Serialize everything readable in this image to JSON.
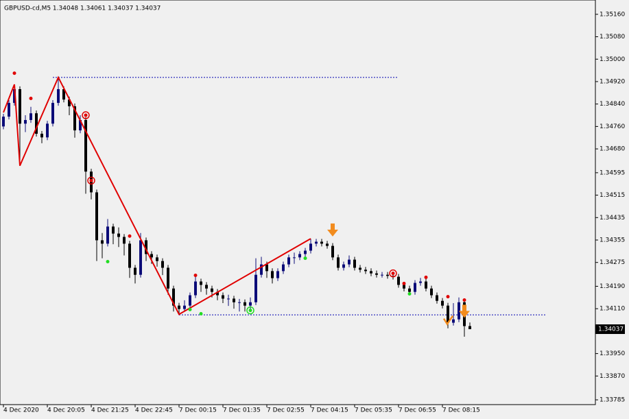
{
  "chart_data": {
    "type": "candlestick",
    "title": "GBPUSD-cd,M5  1.34048 1.34061 1.34037 1.34037",
    "categories": [
      "4 Dec 2020",
      null,
      null,
      null,
      null,
      null,
      null,
      null,
      "4 Dec 20:05",
      null,
      null,
      null,
      null,
      null,
      null,
      null,
      "4 Dec 21:25",
      null,
      null,
      null,
      null,
      null,
      null,
      null,
      "4 Dec 22:45",
      null,
      null,
      null,
      null,
      null,
      null,
      null,
      "7 Dec 00:15",
      null,
      null,
      null,
      null,
      null,
      null,
      null,
      "7 Dec 01:35",
      null,
      null,
      null,
      null,
      null,
      null,
      null,
      "7 Dec 02:55",
      null,
      null,
      null,
      null,
      null,
      null,
      null,
      "7 Dec 04:15",
      null,
      null,
      null,
      null,
      null,
      null,
      null,
      "7 Dec 05:35",
      null,
      null,
      null,
      null,
      null,
      null,
      null,
      "7 Dec 06:55",
      null,
      null,
      null,
      null,
      null,
      null,
      null,
      "7 Dec 08:15",
      null,
      null,
      null,
      null,
      null
    ],
    "open": [
      1.3476,
      1.34795,
      1.34844,
      1.34893,
      1.3477,
      1.34783,
      1.34807,
      1.34734,
      1.34721,
      1.3477,
      1.34844,
      1.34893,
      1.34856,
      1.34832,
      1.34746,
      1.34783,
      1.34599,
      1.34525,
      1.34354,
      1.34342,
      1.34403,
      1.34378,
      1.34366,
      1.34342,
      1.34256,
      1.34231,
      1.34354,
      1.34305,
      1.34293,
      1.3428,
      1.34256,
      1.34182,
      1.34121,
      1.34109,
      1.34121,
      1.34158,
      1.34207,
      1.34195,
      1.34182,
      1.3417,
      1.34158,
      1.34146,
      1.34146,
      1.34133,
      1.34133,
      1.34121,
      1.34133,
      1.34231,
      1.34268,
      1.34244,
      1.34219,
      1.34244,
      1.34268,
      1.34293,
      1.34293,
      1.34305,
      1.34317,
      1.34342,
      1.34349,
      1.34342,
      1.34334,
      1.34293,
      1.34256,
      1.34268,
      1.34285,
      1.34256,
      1.34249,
      1.34244,
      1.34236,
      1.34231,
      1.34231,
      1.34227,
      1.34224,
      1.34195,
      1.34182,
      1.3417,
      1.34202,
      1.34207,
      1.34182,
      1.34158,
      1.34138,
      1.34121,
      1.3406,
      1.34072,
      1.34133,
      1.34048
    ],
    "high": [
      1.34805,
      1.34854,
      1.3491,
      1.34903,
      1.348,
      1.3483,
      1.34817,
      1.34744,
      1.3478,
      1.34854,
      1.34935,
      1.34903,
      1.34866,
      1.34842,
      1.348,
      1.34793,
      1.34609,
      1.34535,
      1.3438,
      1.3443,
      1.34413,
      1.344,
      1.34376,
      1.34352,
      1.34266,
      1.3438,
      1.34364,
      1.34315,
      1.34303,
      1.3429,
      1.34266,
      1.34192,
      1.34131,
      1.3414,
      1.34168,
      1.3423,
      1.34217,
      1.34205,
      1.34192,
      1.3418,
      1.34168,
      1.3416,
      1.34156,
      1.34145,
      1.34143,
      1.3415,
      1.3429,
      1.34295,
      1.34278,
      1.34254,
      1.34254,
      1.34278,
      1.34303,
      1.3431,
      1.34315,
      1.34327,
      1.3436,
      1.34359,
      1.34359,
      1.34352,
      1.34344,
      1.34303,
      1.34278,
      1.343,
      1.34295,
      1.34266,
      1.34259,
      1.34254,
      1.34246,
      1.34241,
      1.34241,
      1.3424,
      1.34234,
      1.34205,
      1.34192,
      1.34212,
      1.3422,
      1.34217,
      1.34192,
      1.34168,
      1.34148,
      1.34131,
      1.3413,
      1.3415,
      1.34143,
      1.34061
    ],
    "low": [
      1.3475,
      1.34785,
      1.34834,
      1.3462,
      1.3474,
      1.34773,
      1.34724,
      1.347,
      1.34711,
      1.3476,
      1.34834,
      1.34846,
      1.348,
      1.3472,
      1.34736,
      1.3452,
      1.345,
      1.3428,
      1.3429,
      1.34332,
      1.3434,
      1.3433,
      1.343,
      1.3422,
      1.342,
      1.34221,
      1.3428,
      1.3427,
      1.3426,
      1.3423,
      1.3416,
      1.341,
      1.3409,
      1.34099,
      1.34111,
      1.34148,
      1.3417,
      1.3416,
      1.3415,
      1.3414,
      1.3413,
      1.3412,
      1.3411,
      1.341,
      1.341,
      1.341,
      1.34123,
      1.34221,
      1.3422,
      1.342,
      1.34209,
      1.34234,
      1.34258,
      1.3427,
      1.34283,
      1.34295,
      1.34307,
      1.34332,
      1.34332,
      1.34324,
      1.34283,
      1.34246,
      1.34246,
      1.34258,
      1.34246,
      1.34239,
      1.34234,
      1.34226,
      1.34221,
      1.34221,
      1.34217,
      1.34214,
      1.34185,
      1.34172,
      1.3416,
      1.3416,
      1.34192,
      1.34172,
      1.34148,
      1.34128,
      1.34111,
      1.3404,
      1.3405,
      1.34062,
      1.3401,
      1.34037
    ],
    "close": [
      1.34795,
      1.34844,
      1.34893,
      1.3477,
      1.34783,
      1.34807,
      1.34734,
      1.34721,
      1.3477,
      1.34844,
      1.34893,
      1.34856,
      1.34832,
      1.34746,
      1.34783,
      1.34599,
      1.34525,
      1.34354,
      1.34342,
      1.34403,
      1.34378,
      1.34366,
      1.34342,
      1.34256,
      1.34231,
      1.34354,
      1.34305,
      1.34293,
      1.3428,
      1.34256,
      1.34182,
      1.34121,
      1.34109,
      1.34121,
      1.34158,
      1.34207,
      1.34195,
      1.34182,
      1.3417,
      1.34158,
      1.34146,
      1.34146,
      1.34133,
      1.34133,
      1.34121,
      1.34133,
      1.34231,
      1.34268,
      1.34244,
      1.34219,
      1.34244,
      1.34268,
      1.34293,
      1.34293,
      1.34305,
      1.34317,
      1.34342,
      1.34349,
      1.34342,
      1.34334,
      1.34293,
      1.34256,
      1.34268,
      1.34285,
      1.34256,
      1.34249,
      1.34244,
      1.34236,
      1.34231,
      1.34231,
      1.34227,
      1.34224,
      1.34195,
      1.34182,
      1.3417,
      1.34202,
      1.34207,
      1.34182,
      1.34158,
      1.34138,
      1.34121,
      1.3406,
      1.34072,
      1.34133,
      1.34048,
      1.34037
    ],
    "up_color": "#0b0b78",
    "down_color": "#000000",
    "ylim": [
      1.33768,
      1.35211
    ],
    "yticks": [
      {
        "value": 1.3516,
        "label": "1.35160"
      },
      {
        "value": 1.3508,
        "label": "1.35080"
      },
      {
        "value": 1.35,
        "label": "1.35000"
      },
      {
        "value": 1.3492,
        "label": "1.34920"
      },
      {
        "value": 1.3484,
        "label": "1.34840"
      },
      {
        "value": 1.3476,
        "label": "1.34760"
      },
      {
        "value": 1.3468,
        "label": "1.34680"
      },
      {
        "value": 1.34595,
        "label": "1.34595"
      },
      {
        "value": 1.34515,
        "label": "1.34515"
      },
      {
        "value": 1.34435,
        "label": "1.34435"
      },
      {
        "value": 1.34355,
        "label": "1.34355"
      },
      {
        "value": 1.34275,
        "label": "1.34275"
      },
      {
        "value": 1.3419,
        "label": "1.34190"
      },
      {
        "value": 1.3411,
        "label": "1.34110"
      },
      {
        "value": 1.3395,
        "label": "1.33950"
      },
      {
        "value": 1.3387,
        "label": "1.33870"
      },
      {
        "value": 1.33785,
        "label": "1.33785"
      }
    ],
    "zigzag": {
      "color": "#e00000",
      "bars": [
        0,
        2,
        3,
        10,
        32,
        56
      ],
      "prices": [
        1.3481,
        1.3491,
        1.3462,
        1.34935,
        1.3409,
        1.3436
      ]
    },
    "levels": [
      {
        "price": 1.34935,
        "from": 9,
        "to": 72,
        "color": "#0000b0"
      },
      {
        "price": 1.34088,
        "from": 32,
        "to": 99,
        "color": "#0000b0"
      }
    ],
    "markers": [
      {
        "kind": "dot",
        "bar": 2,
        "price": 1.3495,
        "color": "#e00000"
      },
      {
        "kind": "dot",
        "bar": 5,
        "price": 1.3486,
        "color": "#e00000"
      },
      {
        "kind": "dot",
        "bar": 23,
        "price": 1.34369,
        "color": "#e00000"
      },
      {
        "kind": "dot",
        "bar": 35,
        "price": 1.34229,
        "color": "#e00000"
      },
      {
        "kind": "dot",
        "bar": 73,
        "price": 1.342,
        "color": "#e00000"
      },
      {
        "kind": "dot",
        "bar": 77,
        "price": 1.34222,
        "color": "#e00000"
      },
      {
        "kind": "dot",
        "bar": 81,
        "price": 1.34153,
        "color": "#e00000"
      },
      {
        "kind": "dot",
        "bar": 84,
        "price": 1.34141,
        "color": "#e00000"
      },
      {
        "kind": "dot",
        "bar": 19,
        "price": 1.34278,
        "color": "#22dd22"
      },
      {
        "kind": "dot",
        "bar": 34,
        "price": 1.34107,
        "color": "#22dd22"
      },
      {
        "kind": "dot",
        "bar": 36,
        "price": 1.34092,
        "color": "#22dd22"
      },
      {
        "kind": "dot",
        "bar": 55,
        "price": 1.3429,
        "color": "#22dd22"
      },
      {
        "kind": "dot",
        "bar": 74,
        "price": 1.34163,
        "color": "#22dd22"
      },
      {
        "kind": "ring",
        "bar": 15,
        "price": 1.348,
        "color": "#e00000"
      },
      {
        "kind": "ring",
        "bar": 16,
        "price": 1.34567,
        "color": "#e00000"
      },
      {
        "kind": "ring",
        "bar": 71,
        "price": 1.34236,
        "color": "#e00000"
      },
      {
        "kind": "ring",
        "bar": 45,
        "price": 1.34104,
        "color": "#22dd22"
      },
      {
        "kind": "arrow",
        "bar": 60,
        "price": 1.3437,
        "color": "#f28c1e"
      },
      {
        "kind": "arrow",
        "bar": 84,
        "price": 1.3408,
        "color": "#f28c1e"
      },
      {
        "kind": "check",
        "bar": 81,
        "price": 1.3406,
        "color": "#f28c1e"
      }
    ]
  }
}
